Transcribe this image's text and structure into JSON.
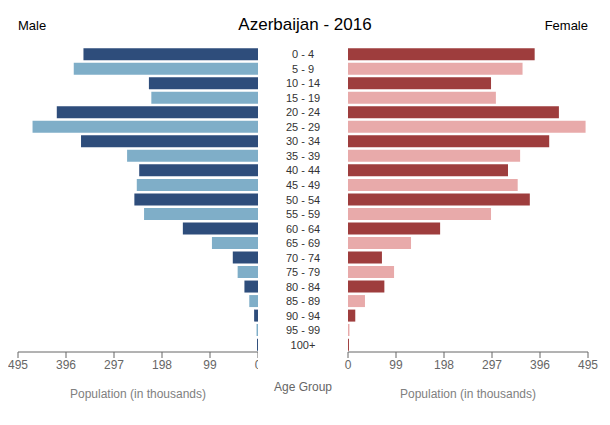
{
  "chart_data": {
    "type": "bar",
    "orientation": "horizontal",
    "title": "Azerbaijan - 2016",
    "xlabel": "Population (in thousands)",
    "ylabel": "Age Group",
    "categories": [
      "100+",
      "95 - 99",
      "90 - 94",
      "85 - 89",
      "80 - 84",
      "75 - 79",
      "70 - 74",
      "65 - 69",
      "60 - 64",
      "55 - 59",
      "50 - 54",
      "45 - 49",
      "40 - 44",
      "35 - 39",
      "30 - 34",
      "25 - 29",
      "20 - 24",
      "15 - 19",
      "10 - 14",
      "5 - 9",
      "0 - 4"
    ],
    "series": [
      {
        "name": "Male",
        "values": [
          2,
          3,
          8,
          18,
          28,
          42,
          52,
          95,
          155,
          235,
          255,
          250,
          245,
          270,
          365,
          465,
          415,
          220,
          225,
          380,
          360
        ],
        "colors": [
          "#2e4d7b",
          "#7faec8",
          "#2e4d7b",
          "#7faec8",
          "#2e4d7b",
          "#7faec8",
          "#2e4d7b",
          "#7faec8",
          "#2e4d7b",
          "#7faec8",
          "#2e4d7b",
          "#7faec8",
          "#2e4d7b",
          "#7faec8",
          "#2e4d7b",
          "#7faec8",
          "#2e4d7b",
          "#7faec8",
          "#2e4d7b",
          "#7faec8",
          "#2e4d7b"
        ]
      },
      {
        "name": "Female",
        "values": [
          2,
          3,
          15,
          35,
          75,
          95,
          70,
          130,
          190,
          295,
          375,
          350,
          330,
          355,
          415,
          490,
          435,
          305,
          295,
          360,
          385
        ],
        "colors": [
          "#9e3d3d",
          "#e8aaaa",
          "#9e3d3d",
          "#e8aaaa",
          "#9e3d3d",
          "#e8aaaa",
          "#9e3d3d",
          "#e8aaaa",
          "#9e3d3d",
          "#e8aaaa",
          "#9e3d3d",
          "#e8aaaa",
          "#9e3d3d",
          "#e8aaaa",
          "#9e3d3d",
          "#e8aaaa",
          "#9e3d3d",
          "#e8aaaa",
          "#9e3d3d",
          "#e8aaaa",
          "#9e3d3d"
        ]
      }
    ],
    "xlim": [
      0,
      495
    ],
    "xticks": [
      0,
      99,
      198,
      297,
      396,
      495
    ],
    "grid": false
  }
}
